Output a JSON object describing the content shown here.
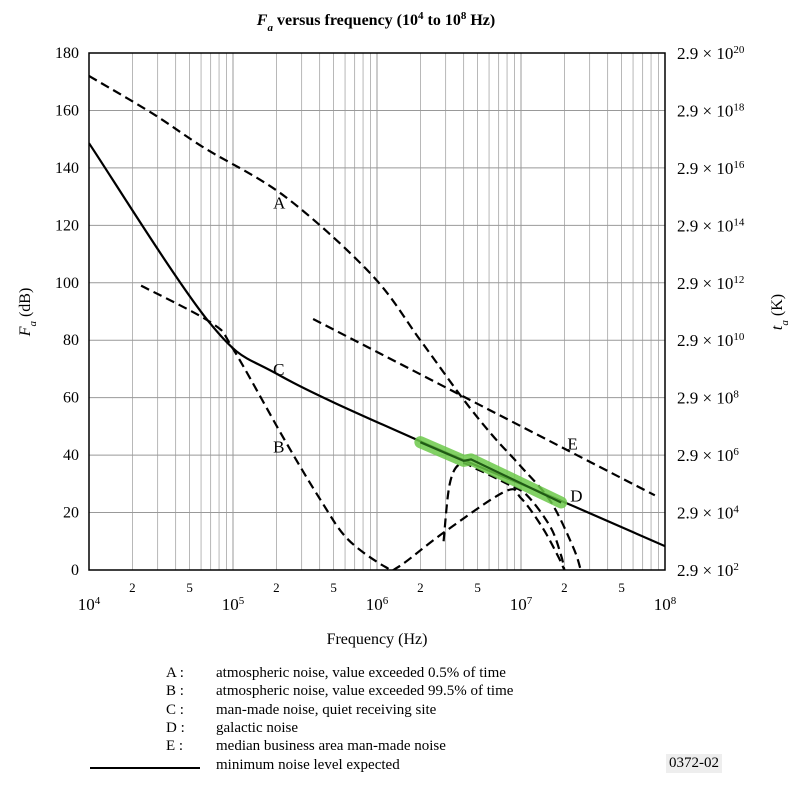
{
  "chart_data": {
    "type": "line",
    "title": {
      "main": "F",
      "sub": "a",
      "rest": " versus frequency (10",
      "e1": "4",
      "mid": " to 10",
      "e2": "8",
      "end": " Hz)"
    },
    "xlabel": "Frequency (Hz)",
    "ylabel": {
      "main": "F",
      "sub": "a",
      "rest": " (dB)"
    },
    "ylabel_right": {
      "main": "t",
      "sub": "a",
      "rest": " (K)"
    },
    "x_scale": "log",
    "xlim": [
      10000,
      100000000
    ],
    "ylim": [
      0,
      180
    ],
    "grid": true,
    "x_major_ticks": [
      {
        "base": "10",
        "exp": "4"
      },
      {
        "base": "10",
        "exp": "5"
      },
      {
        "base": "10",
        "exp": "6"
      },
      {
        "base": "10",
        "exp": "7"
      },
      {
        "base": "10",
        "exp": "8"
      }
    ],
    "x_minor_tick_labels": [
      "2",
      "5"
    ],
    "y_ticks": [
      0,
      20,
      40,
      60,
      80,
      100,
      120,
      140,
      160,
      180
    ],
    "y_right_ticks": [
      {
        "mant": "2.9 × 10",
        "exp": "2"
      },
      {
        "mant": "2.9 × 10",
        "exp": "4"
      },
      {
        "mant": "2.9 × 10",
        "exp": "6"
      },
      {
        "mant": "2.9 × 10",
        "exp": "8"
      },
      {
        "mant": "2.9 × 10",
        "exp": "10"
      },
      {
        "mant": "2.9 × 10",
        "exp": "12"
      },
      {
        "mant": "2.9 × 10",
        "exp": "14"
      },
      {
        "mant": "2.9 × 10",
        "exp": "16"
      },
      {
        "mant": "2.9 × 10",
        "exp": "18"
      },
      {
        "mant": "2.9 × 10",
        "exp": "20"
      }
    ],
    "series": [
      {
        "name": "A",
        "style": "dashed",
        "color": "#000000",
        "x": [
          10000.0,
          27500.0,
          63000.0,
          230000.0,
          910000.0,
          2000000.0,
          3900000.0,
          6300000.0,
          10000000.0,
          16000000.0,
          23000000.0,
          26000000.0
        ],
        "y": [
          172,
          159,
          147,
          130,
          103,
          80,
          60,
          47,
          36,
          24,
          8,
          0
        ]
      },
      {
        "name": "B",
        "style": "dashed",
        "color": "#000000",
        "x": [
          23000.0,
          71000.0,
          100000.0,
          230000.0,
          410000.0,
          630000.0,
          1150000.0,
          1400000.0,
          2900000.0,
          7800000.0,
          10000000.0,
          14000000.0,
          18000000.0,
          20000000.0
        ],
        "y": [
          99,
          86,
          77,
          45,
          24,
          10.6,
          1,
          1,
          13,
          27.4,
          25,
          15,
          5,
          0
        ]
      },
      {
        "name": "C",
        "style": "solid",
        "color": "#000000",
        "x": [
          10000.0,
          69000.0,
          210000.0,
          2000000.0,
          20000000.0,
          100000000.0
        ],
        "y": [
          148.6,
          86,
          67.8,
          44.8,
          23.6,
          8.3
        ]
      },
      {
        "name": "D",
        "style": "dashed",
        "color": "#000000",
        "x": [
          2900000.0,
          3200000.0,
          3800000.0,
          5000000.0,
          8000000.0,
          11000000.0,
          16000000.0,
          19000000.0,
          20000000.0
        ],
        "y": [
          10,
          30,
          37,
          35,
          30,
          26,
          15,
          5,
          0
        ]
      },
      {
        "name": "E",
        "style": "dashed",
        "color": "#000000",
        "x": [
          360000.0,
          85000000.0
        ],
        "y": [
          87.4,
          26
        ]
      },
      {
        "name": "minimum noise level expected",
        "style": "highlight",
        "color": "#6cc94a",
        "x": [
          2000000.0,
          4000000.0,
          4500000.0,
          19000000.0
        ],
        "y": [
          44.5,
          38,
          38.5,
          23.5
        ]
      }
    ],
    "curve_labels": [
      {
        "text": "A",
        "x": 190000.0,
        "y": 128
      },
      {
        "text": "B",
        "x": 190000.0,
        "y": 43
      },
      {
        "text": "C",
        "x": 190000.0,
        "y": 70
      },
      {
        "text": "D",
        "x": 22000000.0,
        "y": 26
      },
      {
        "text": "E",
        "x": 21000000.0,
        "y": 44
      }
    ]
  },
  "legend": [
    {
      "key": "A :",
      "text": "atmospheric noise, value exceeded 0.5% of time"
    },
    {
      "key": "B :",
      "text": "atmospheric noise, value exceeded 99.5% of time"
    },
    {
      "key": "C :",
      "text": "man-made noise, quiet receiving site"
    },
    {
      "key": "D :",
      "text": "galactic noise"
    },
    {
      "key": "E :",
      "text": "median business area man-made noise"
    },
    {
      "key": "",
      "text": "minimum noise level expected"
    }
  ],
  "figure_code": "0372-02"
}
